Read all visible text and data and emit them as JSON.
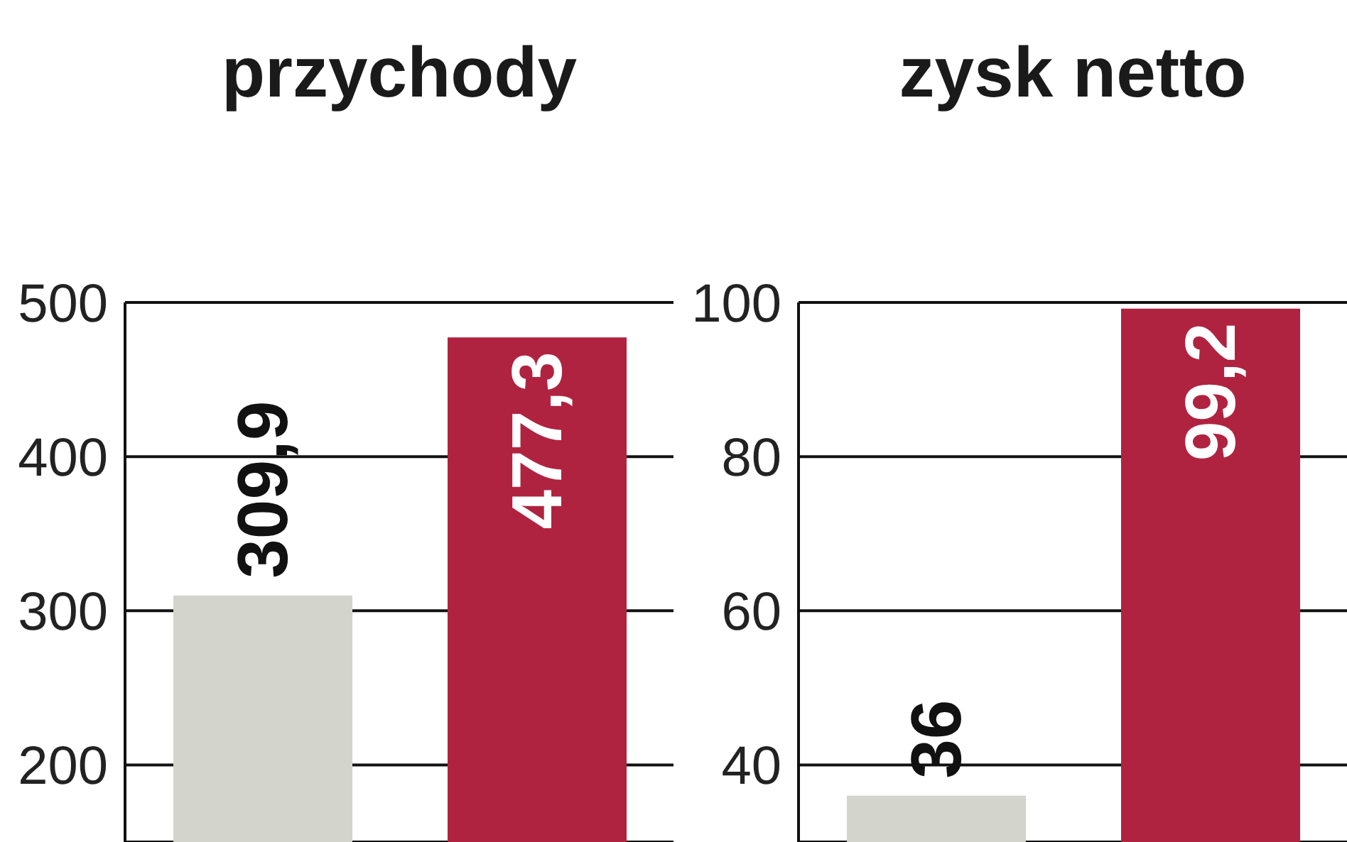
{
  "chart_data": [
    {
      "type": "bar",
      "title": "przychody",
      "categories": [
        null,
        null
      ],
      "values": [
        309.9,
        477.3
      ],
      "colors": [
        "#d3d4cc",
        "#b02340"
      ],
      "value_labels": [
        "309,9",
        "477,3"
      ],
      "ylim": [
        150,
        500
      ],
      "yticks": [
        200,
        300,
        400,
        500
      ],
      "grid": "y",
      "legend": false
    },
    {
      "type": "bar",
      "title": "zysk netto",
      "categories": [
        null,
        null
      ],
      "values": [
        36,
        99.2
      ],
      "colors": [
        "#d3d4cc",
        "#b02340"
      ],
      "value_labels": [
        "36",
        "99,2"
      ],
      "ylim": [
        30,
        100
      ],
      "yticks": [
        40,
        60,
        80,
        100
      ],
      "grid": "y",
      "legend": false
    }
  ]
}
